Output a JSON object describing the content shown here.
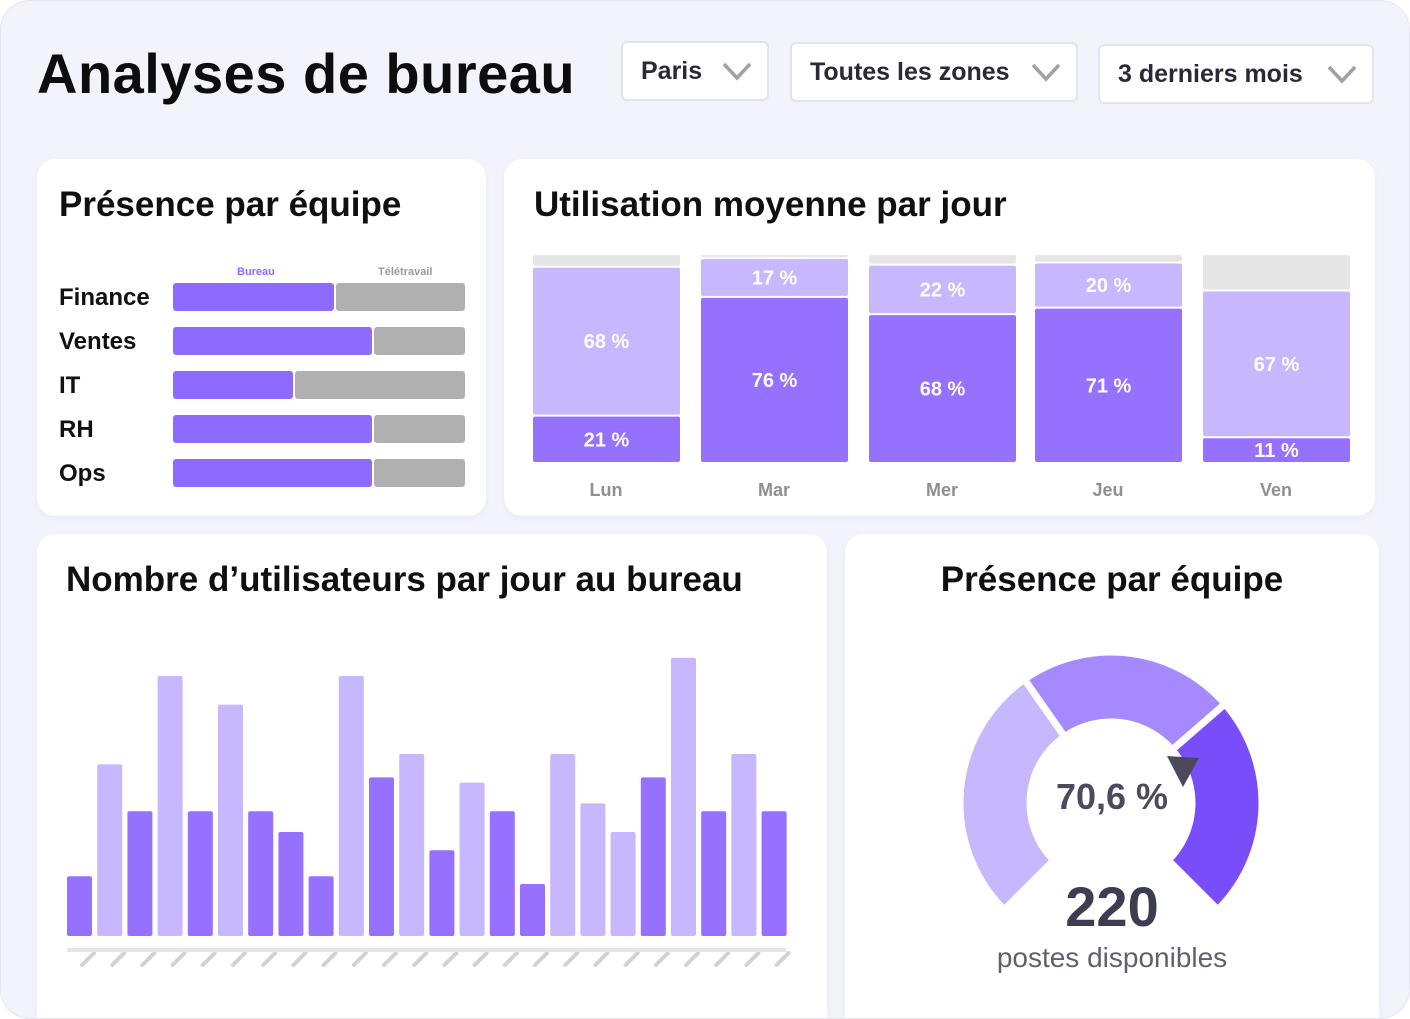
{
  "header": {
    "title": "Analyses de bureau",
    "filters": [
      {
        "label": "Paris"
      },
      {
        "label": "Toutes les zones"
      },
      {
        "label": "3 derniers mois"
      }
    ]
  },
  "team_card": {
    "title": "Présence par équipe",
    "legend_office": "Bureau",
    "legend_remote": "Télétravail",
    "teams": [
      {
        "label": "Finance",
        "office_pct": 55
      },
      {
        "label": "Ventes",
        "office_pct": 68
      },
      {
        "label": "IT",
        "office_pct": 41
      },
      {
        "label": "RH",
        "office_pct": 68
      },
      {
        "label": "Ops",
        "office_pct": 68
      }
    ]
  },
  "daily_card": {
    "title": "Utilisation moyenne par jour",
    "days": [
      {
        "label": "Lun",
        "bottom_label": "21 %",
        "bottom": 21,
        "top_label": "68 %",
        "top": 68
      },
      {
        "label": "Mar",
        "bottom_label": "76 %",
        "bottom": 76,
        "top_label": "17 %",
        "top": 17
      },
      {
        "label": "Mer",
        "bottom_label": "68 %",
        "bottom": 68,
        "top_label": "22 %",
        "top": 22
      },
      {
        "label": "Jeu",
        "bottom_label": "71 %",
        "bottom": 71,
        "top_label": "20 %",
        "top": 20
      },
      {
        "label": "Ven",
        "bottom_label": "11 %",
        "bottom": 11,
        "top_label": "67 %",
        "top": 67
      }
    ]
  },
  "users_card": {
    "title": "Nombre d’utilisateurs par jour au bureau"
  },
  "gauge_card": {
    "title": "Présence par équipe",
    "percent_text": "70,6 %",
    "percent_value": 70.6,
    "count": "220",
    "count_label": "postes disponibles"
  },
  "chart_data": [
    {
      "type": "bar",
      "title": "Présence par équipe",
      "categories": [
        "Finance",
        "Ventes",
        "IT",
        "RH",
        "Ops"
      ],
      "series": [
        {
          "name": "Bureau",
          "values": [
            55,
            68,
            41,
            68,
            68
          ]
        },
        {
          "name": "Télétravail",
          "values": [
            45,
            32,
            59,
            32,
            32
          ]
        }
      ],
      "orientation": "horizontal",
      "stacked": true
    },
    {
      "type": "bar",
      "title": "Utilisation moyenne par jour",
      "categories": [
        "Lun",
        "Mar",
        "Mer",
        "Jeu",
        "Ven"
      ],
      "series": [
        {
          "values": [
            21,
            76,
            68,
            71,
            11
          ]
        },
        {
          "values": [
            68,
            17,
            22,
            20,
            67
          ]
        }
      ],
      "stacked": true,
      "ylim": [
        0,
        100
      ]
    },
    {
      "type": "bar",
      "title": "Nombre d’utilisateurs par jour au bureau",
      "values": [
        23,
        66,
        48,
        100,
        48,
        89,
        48,
        40,
        23,
        100,
        61,
        70,
        33,
        59,
        48,
        20,
        70,
        51,
        40,
        61,
        107,
        48,
        70,
        48
      ],
      "colors": [
        "#9670ff",
        "#c6b7ff",
        "#9670ff",
        "#c6b7ff",
        "#9670ff",
        "#c6b7ff",
        "#9670ff",
        "#9670ff",
        "#9670ff",
        "#c6b7ff",
        "#9670ff",
        "#c6b7ff",
        "#9670ff",
        "#c6b7ff",
        "#9670ff",
        "#9670ff",
        "#c6b7ff",
        "#c6b7ff",
        "#c6b7ff",
        "#9670ff",
        "#c6b7ff",
        "#9670ff",
        "#c6b7ff",
        "#9670ff"
      ]
    }
  ],
  "colors": {
    "office": "#8e6bff",
    "remote": "#b0b0b0",
    "dark_purple": "#9670ff",
    "light_purple": "#c6b7ff",
    "gauge_light": "#c6b7ff",
    "gauge_mid": "#a58aff",
    "gauge_dark": "#7a4dfa"
  }
}
